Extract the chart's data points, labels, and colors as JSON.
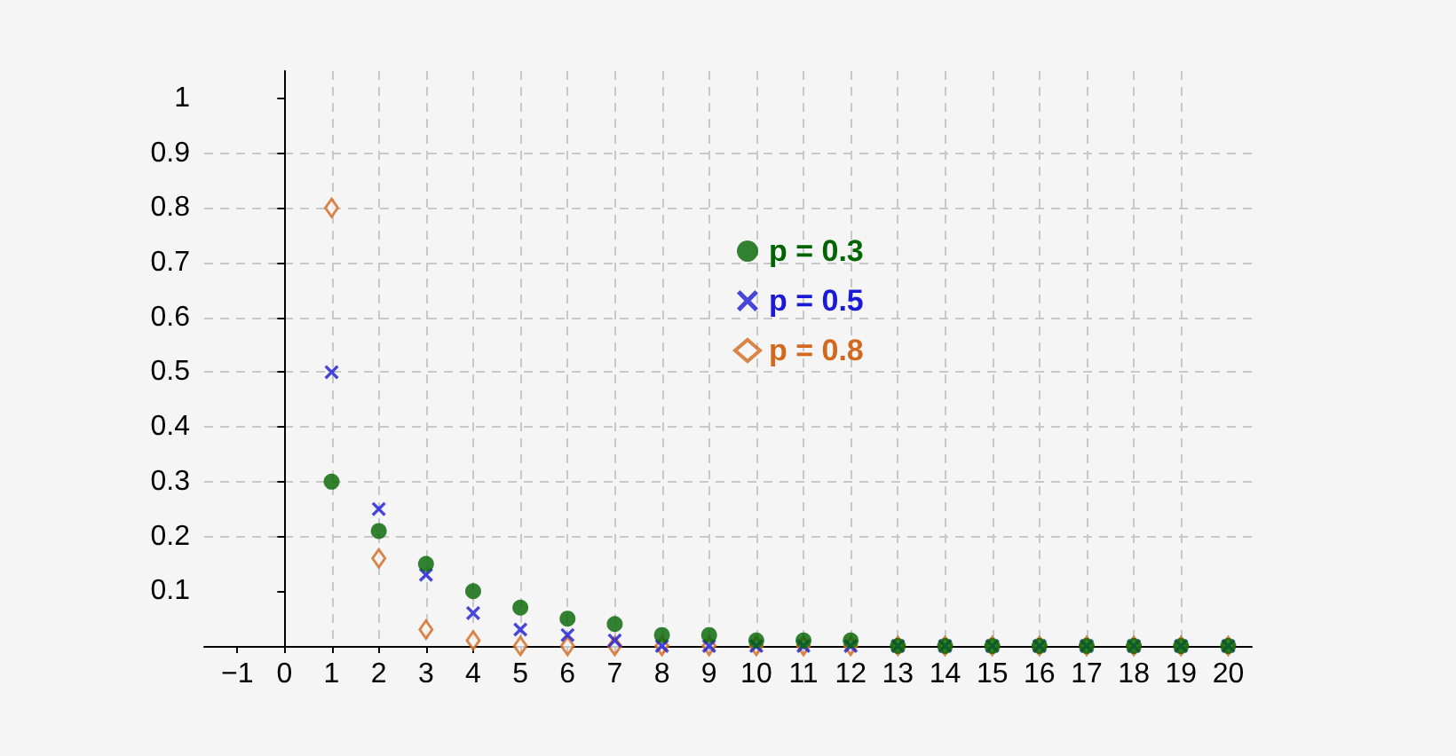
{
  "chart_data": {
    "type": "scatter",
    "x": [
      1,
      2,
      3,
      4,
      5,
      6,
      7,
      8,
      9,
      10,
      11,
      12,
      13,
      14,
      15,
      16,
      17,
      18,
      19,
      20
    ],
    "series": [
      {
        "name": "p = 0.3",
        "color": "#006400",
        "marker": "circle",
        "values": [
          0.3,
          0.21,
          0.15,
          0.1,
          0.07,
          0.05,
          0.04,
          0.02,
          0.02,
          0.01,
          0.01,
          0.01,
          0,
          0,
          0,
          0,
          0,
          0,
          0,
          0
        ]
      },
      {
        "name": "p = 0.5",
        "color": "#1a1ad6",
        "marker": "cross",
        "values": [
          0.5,
          0.25,
          0.13,
          0.06,
          0.03,
          0.02,
          0.01,
          0,
          0,
          0,
          0,
          0,
          0,
          0,
          0,
          0,
          0,
          0,
          0,
          0
        ]
      },
      {
        "name": "p = 0.8",
        "color": "#d2691e",
        "marker": "diamond",
        "values": [
          0.8,
          0.16,
          0.03,
          0.01,
          0,
          0,
          0,
          0,
          0,
          0,
          0,
          0,
          0,
          0,
          0,
          0,
          0,
          0,
          0,
          0
        ]
      }
    ],
    "xlim": [
      -1.7,
      20.5
    ],
    "xticks": [
      -1,
      0,
      1,
      2,
      3,
      4,
      5,
      6,
      7,
      8,
      9,
      10,
      11,
      12,
      13,
      14,
      15,
      16,
      17,
      18,
      19,
      20
    ],
    "ylim": [
      0,
      1.05
    ],
    "yticks": [
      0.1,
      0.2,
      0.3,
      0.4,
      0.5,
      0.6,
      0.7,
      0.8,
      0.9,
      1
    ],
    "grid": true,
    "legend": "top"
  }
}
